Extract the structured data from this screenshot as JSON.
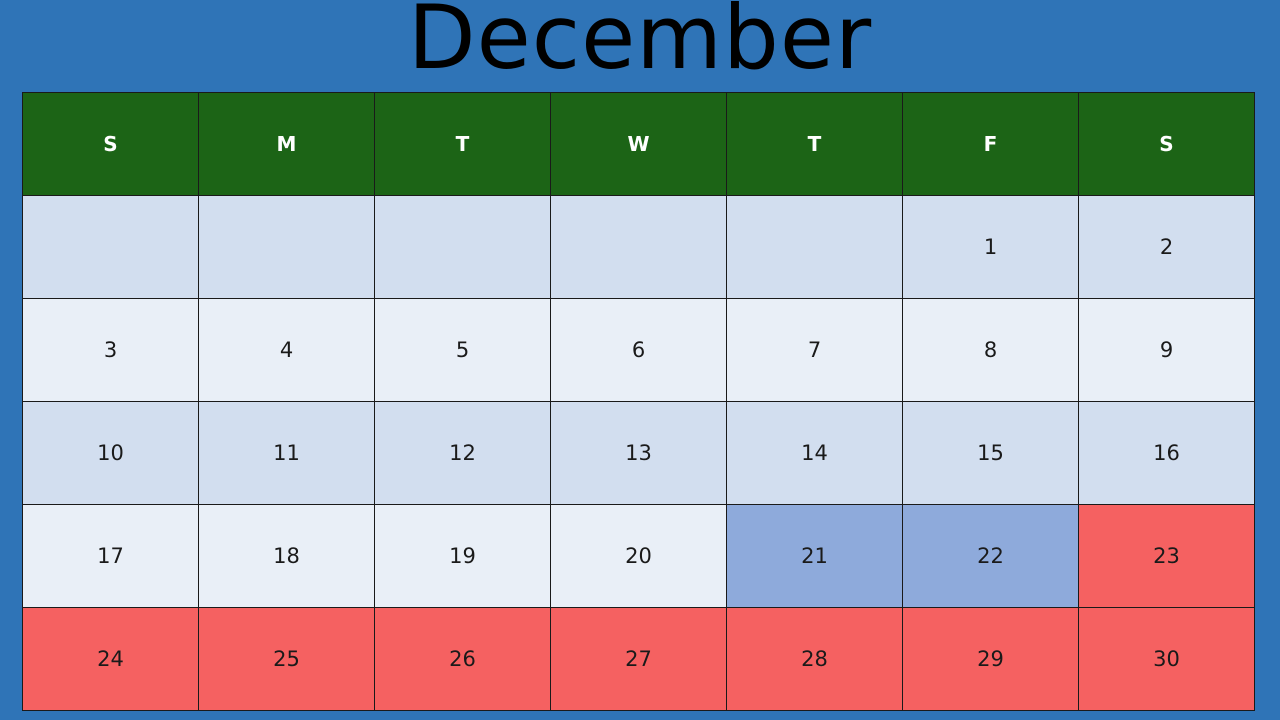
{
  "month": "December",
  "weekdays": [
    "S",
    "M",
    "T",
    "W",
    "T",
    "F",
    "S"
  ],
  "weeks": [
    [
      "",
      "",
      "",
      "",
      "",
      "1",
      "2"
    ],
    [
      "3",
      "4",
      "5",
      "6",
      "7",
      "8",
      "9"
    ],
    [
      "10",
      "11",
      "12",
      "13",
      "14",
      "15",
      "16"
    ],
    [
      "17",
      "18",
      "19",
      "20",
      "21",
      "22",
      "23"
    ],
    [
      "24",
      "25",
      "26",
      "27",
      "28",
      "29",
      "30"
    ]
  ],
  "colors": {
    "background": "#2f74b7",
    "header": "#1c6416",
    "row_shade_dark": "#d2deef",
    "row_shade_light": "#e9eff7",
    "highlight_blue": "#8eaadb",
    "highlight_red": "#f56161"
  }
}
